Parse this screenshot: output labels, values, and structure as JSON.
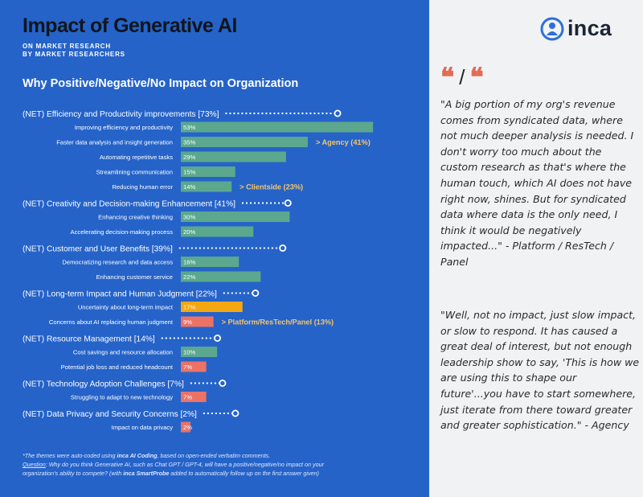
{
  "header": {
    "title": "Impact of Generative AI",
    "subtitle_line1": "ON MARKET RESEARCH",
    "subtitle_line2": "BY MARKET RESEARCHERS",
    "section_title": "Why Positive/Negative/No Impact on Organization"
  },
  "colors": {
    "teal": "#5ba88f",
    "amber": "#f5a712",
    "coral": "#ec7266",
    "panel_blue": "#2563c9"
  },
  "chart_data": {
    "type": "bar",
    "orientation": "horizontal",
    "xlim": [
      0,
      60
    ],
    "groups": [
      {
        "label": "(NET) Efficiency and Productivity improvements [73%]",
        "value": 73,
        "items": [
          {
            "label": "Improving efficiency and productivity",
            "value": 53,
            "value_label": "53%",
            "color": "teal"
          },
          {
            "label": "Faster data analysis and insight generation",
            "value": 35,
            "value_label": "35%",
            "color": "teal",
            "annotation": "> Agency (41%)"
          },
          {
            "label": "Automating repetitive tasks",
            "value": 29,
            "value_label": "29%",
            "color": "teal"
          },
          {
            "label": "Streamlining communication",
            "value": 15,
            "value_label": "15%",
            "color": "teal"
          },
          {
            "label": "Reducing human error",
            "value": 14,
            "value_label": "14%",
            "color": "teal",
            "annotation": "> Clientside (23%)"
          }
        ]
      },
      {
        "label": "(NET) Creativity and Decision-making Enhancement [41%]",
        "value": 41,
        "items": [
          {
            "label": "Enhancing creative thinking",
            "value": 30,
            "value_label": "30%",
            "color": "teal"
          },
          {
            "label": "Accelerating decision-making process",
            "value": 20,
            "value_label": "20%",
            "color": "teal"
          }
        ]
      },
      {
        "label": "(NET) Customer and User Benefits [39%]",
        "value": 39,
        "items": [
          {
            "label": "Democratizing research and data access",
            "value": 16,
            "value_label": "16%",
            "color": "teal"
          },
          {
            "label": "Enhancing customer service",
            "value": 22,
            "value_label": "22%",
            "color": "teal"
          }
        ]
      },
      {
        "label": "(NET) Long-term Impact and Human Judgment [22%]",
        "value": 22,
        "items": [
          {
            "label": "Uncertainty about long-term impact",
            "value": 17,
            "value_label": "17%",
            "color": "amber"
          },
          {
            "label": "Concerns about AI replacing human judgment",
            "value": 9,
            "value_label": "9%",
            "color": "coral",
            "annotation": "> Platform/ResTech/Panel (13%)"
          }
        ]
      },
      {
        "label": "(NET) Resource Management [14%]",
        "value": 14,
        "items": [
          {
            "label": "Cost savings and resource allocation",
            "value": 10,
            "value_label": "10%",
            "color": "teal"
          },
          {
            "label": "Potential job loss and reduced headcount",
            "value": 7,
            "value_label": "7%",
            "color": "coral"
          }
        ]
      },
      {
        "label": "(NET) Technology Adoption Challenges [7%]",
        "value": 7,
        "items": [
          {
            "label": "Struggling to adapt to new technology",
            "value": 7,
            "value_label": "7%",
            "color": "coral"
          }
        ]
      },
      {
        "label": "(NET) Data Privacy and Security Concerns [2%]",
        "value": 2,
        "items": [
          {
            "label": "Impact on data privacy",
            "value": 2,
            "value_label": "2%",
            "color": "coral"
          }
        ]
      }
    ]
  },
  "footnote": {
    "line1_prefix": "*The themes were auto-coded using ",
    "line1_bold": "inca AI Coding",
    "line1_suffix": ", based on open-ended verbatim comments.",
    "question_label": "Question",
    "line2": ": Why do you think Generative AI, such as Chat GPT / GPT-4, will have a positive/negative/no impact on your",
    "line3_prefix": "organization's ability to compete? (with ",
    "line3_bold": "inca SmartProbe",
    "line3_suffix": " added to automatically follow up on the first answer given)"
  },
  "sidebar": {
    "logo_text": "inca",
    "quote_icon_left": "quote-icon",
    "separator": "/",
    "quotes": [
      "\"A big portion of my org's revenue comes from syndicated data, where not much deeper analysis is needed. I don't worry too much about the custom research as that's where the human touch, which AI does not have right now, shines. But for syndicated data where data is the only need, I think it would be negatively impacted...\" - Platform / ResTech / Panel",
      "\"Well, not no impact, just slow impact, or slow to respond. It has caused a great deal of interest, but not enough leadership show to say, 'This is how we are using this to shape our future'...you have to start somewhere, just iterate from there toward greater and greater sophistication.\" - Agency"
    ]
  }
}
